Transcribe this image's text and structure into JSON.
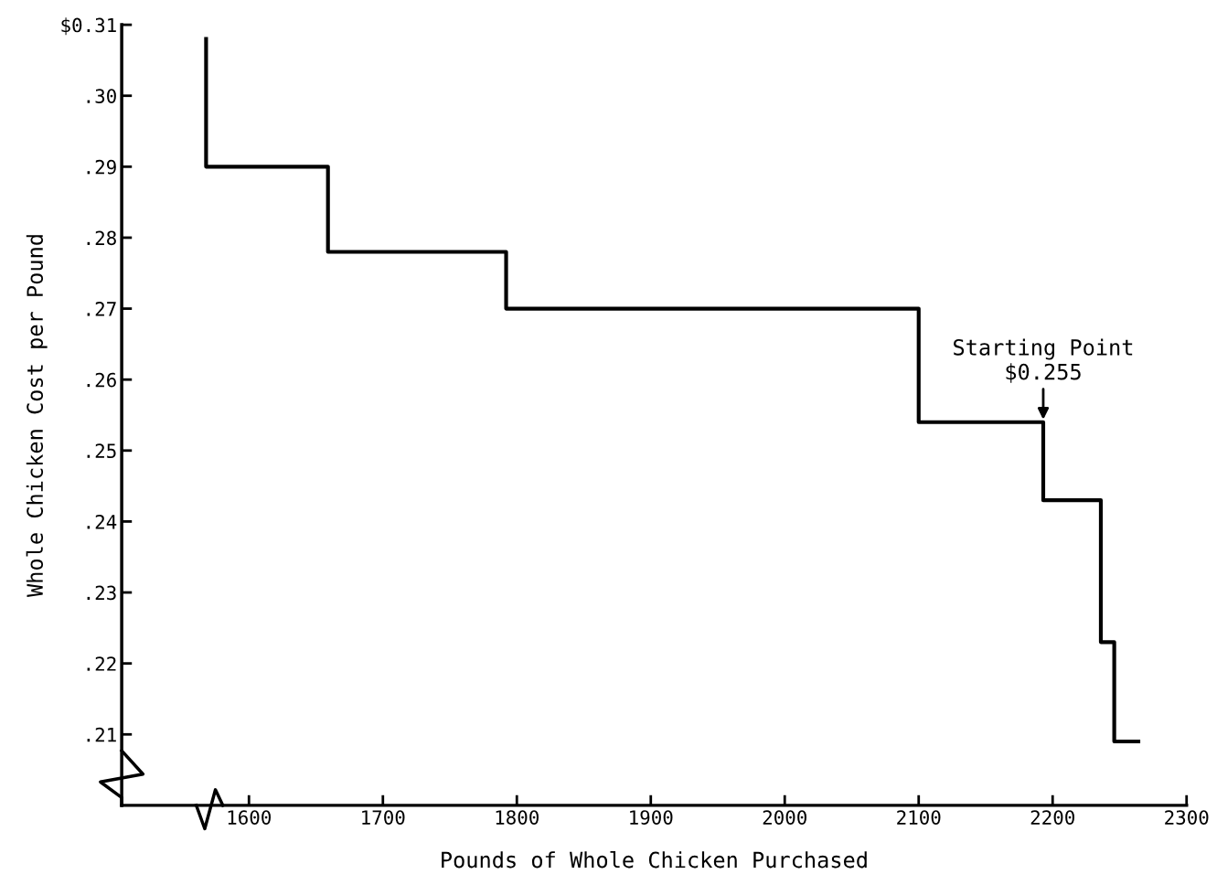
{
  "chart_data": {
    "type": "step",
    "xlabel": "Pounds of Whole Chicken Purchased",
    "ylabel": "Whole Chicken Cost per Pound",
    "x": [
      1568,
      1568,
      1659,
      1792,
      2100,
      2193,
      2236,
      2246,
      2264
    ],
    "series": [
      {
        "color": "#000000",
        "values": [
          0.308,
          0.29,
          0.278,
          0.27,
          0.254,
          0.243,
          0.223,
          0.209,
          0.209
        ]
      }
    ],
    "xlim": [
      1505,
      2300
    ],
    "xticks": [
      1600,
      1700,
      1800,
      1900,
      2000,
      2100,
      2200,
      2300
    ],
    "ylim": [
      0.2,
      0.31
    ],
    "yticks": [
      {
        "value": 0.21,
        "label": ".21"
      },
      {
        "value": 0.22,
        "label": ".22"
      },
      {
        "value": 0.23,
        "label": ".23"
      },
      {
        "value": 0.24,
        "label": ".24"
      },
      {
        "value": 0.25,
        "label": ".25"
      },
      {
        "value": 0.26,
        "label": ".26"
      },
      {
        "value": 0.27,
        "label": ".27"
      },
      {
        "value": 0.28,
        "label": ".28"
      },
      {
        "value": 0.29,
        "label": ".29"
      },
      {
        "value": 0.3,
        "label": ".30"
      },
      {
        "value": 0.31,
        "label": "$0.31"
      }
    ],
    "annotations": [
      {
        "text": "Starting Point\n$0.255",
        "x": 2193,
        "y": 0.254
      }
    ],
    "marker": "none",
    "line_style": "solid"
  }
}
